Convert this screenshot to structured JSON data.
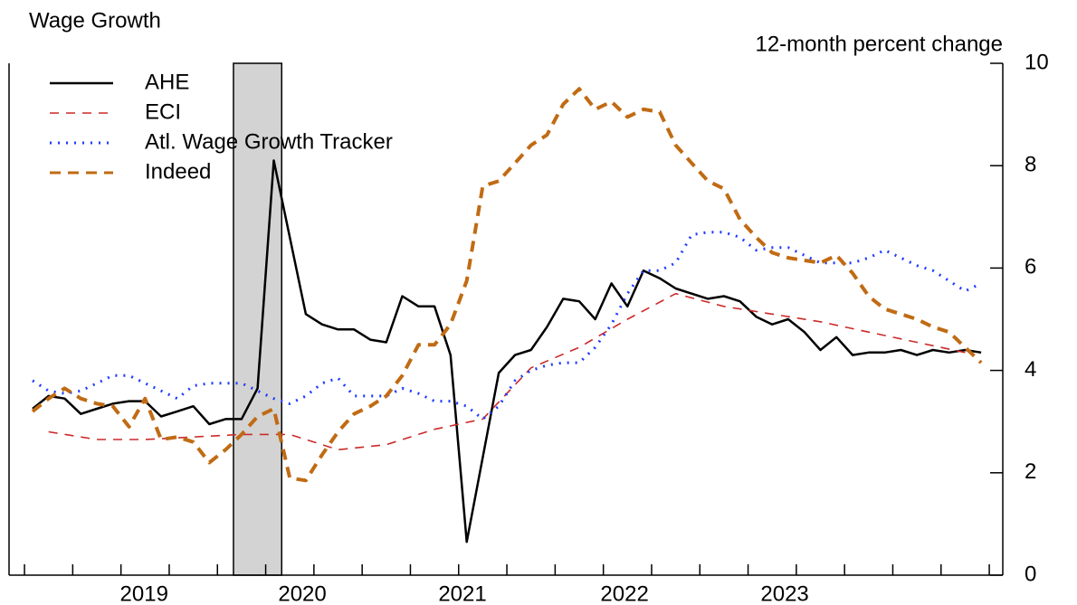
{
  "chart_data": {
    "type": "line",
    "title": "Wage Growth",
    "y_axis_label": "12-month percent change",
    "xlim": [
      2018.92,
      2024.07
    ],
    "ylim": [
      0,
      10
    ],
    "yticks": [
      0,
      2,
      4,
      6,
      8,
      10
    ],
    "xticks": [
      {
        "value": 2019.62,
        "label": "2019"
      },
      {
        "value": 2020.44,
        "label": "2020"
      },
      {
        "value": 2021.27,
        "label": "2021"
      },
      {
        "value": 2022.11,
        "label": "2022"
      },
      {
        "value": 2022.94,
        "label": "2023"
      }
    ],
    "xminor_ticks": [
      2019,
      2019.25,
      2019.5,
      2019.75,
      2020,
      2020.25,
      2020.5,
      2020.75,
      2021,
      2021.25,
      2021.5,
      2021.75,
      2022,
      2022.25,
      2022.5,
      2022.75,
      2023,
      2023.25,
      2023.5,
      2023.75,
      2024
    ],
    "shaded_spans": [
      [
        2020.083,
        2020.333
      ]
    ],
    "shade_color": "#d3d3d3",
    "legend": "upper left",
    "x": [
      2019.042,
      2019.125,
      2019.208,
      2019.292,
      2019.375,
      2019.458,
      2019.542,
      2019.625,
      2019.708,
      2019.792,
      2019.875,
      2019.958,
      2020.042,
      2020.125,
      2020.208,
      2020.292,
      2020.375,
      2020.458,
      2020.542,
      2020.625,
      2020.708,
      2020.792,
      2020.875,
      2020.958,
      2021.042,
      2021.125,
      2021.208,
      2021.292,
      2021.375,
      2021.458,
      2021.542,
      2021.625,
      2021.708,
      2021.792,
      2021.875,
      2021.958,
      2022.042,
      2022.125,
      2022.208,
      2022.292,
      2022.375,
      2022.458,
      2022.542,
      2022.625,
      2022.708,
      2022.792,
      2022.875,
      2022.958,
      2023.042,
      2023.125,
      2023.208,
      2023.292,
      2023.375,
      2023.458,
      2023.542,
      2023.625,
      2023.708,
      2023.792,
      2023.875,
      2023.958
    ],
    "series": [
      {
        "name": "AHE",
        "color": "#000000",
        "dash": "none",
        "width": 2.5,
        "values": [
          3.25,
          3.5,
          3.45,
          3.15,
          3.25,
          3.35,
          3.4,
          3.4,
          3.1,
          3.2,
          3.3,
          2.95,
          3.05,
          3.05,
          3.65,
          8.1,
          6.6,
          5.1,
          4.9,
          4.8,
          4.8,
          4.6,
          4.55,
          5.45,
          5.25,
          5.25,
          4.3,
          0.65,
          2.3,
          3.95,
          4.3,
          4.4,
          4.85,
          5.4,
          5.35,
          5.0,
          5.7,
          5.25,
          5.95,
          5.8,
          5.6,
          5.5,
          5.4,
          5.45,
          5.35,
          5.05,
          4.9,
          5.0,
          4.75,
          4.4,
          4.65,
          4.3,
          4.35,
          4.35,
          4.4,
          4.3,
          4.4,
          4.35,
          4.4,
          4.35
        ]
      },
      {
        "name": "ECI",
        "color": "#cc2a2a",
        "dash": "10 8",
        "width": 1.6,
        "x": [
          2019.125,
          2019.375,
          2019.625,
          2019.875,
          2020.125,
          2020.375,
          2020.625,
          2020.875,
          2021.125,
          2021.375,
          2021.625,
          2021.875,
          2022.125,
          2022.375,
          2022.625,
          2022.875,
          2023.125,
          2023.375,
          2023.625,
          2023.875
        ],
        "values": [
          2.8,
          2.65,
          2.65,
          2.7,
          2.75,
          2.75,
          2.45,
          2.55,
          2.85,
          3.05,
          4.05,
          4.45,
          5.0,
          5.5,
          5.25,
          5.1,
          4.95,
          4.75,
          4.55,
          4.35
        ]
      },
      {
        "name": "Atl. Wage Growth Tracker",
        "color": "#1f3cff",
        "dash": "2 7",
        "width": 3,
        "values": [
          3.8,
          3.6,
          3.55,
          3.6,
          3.75,
          3.9,
          3.9,
          3.75,
          3.6,
          3.45,
          3.7,
          3.75,
          3.75,
          3.75,
          3.6,
          3.45,
          3.35,
          3.5,
          3.75,
          3.85,
          3.5,
          3.5,
          3.5,
          3.65,
          3.55,
          3.4,
          3.4,
          3.3,
          3.05,
          3.3,
          3.8,
          4.0,
          4.1,
          4.15,
          4.15,
          4.45,
          4.9,
          5.5,
          5.95,
          5.95,
          6.1,
          6.65,
          6.7,
          6.7,
          6.6,
          6.35,
          6.4,
          6.4,
          6.25,
          6.1,
          6.1,
          6.1,
          6.2,
          6.35,
          6.2,
          6.05,
          5.95,
          5.75,
          5.55,
          5.7
        ]
      },
      {
        "name": "Indeed",
        "color": "#c06b14",
        "dash": "12 8",
        "width": 4,
        "values": [
          3.2,
          3.45,
          3.65,
          3.45,
          3.35,
          3.3,
          2.9,
          3.45,
          2.65,
          2.7,
          2.6,
          2.2,
          2.45,
          2.75,
          3.1,
          3.25,
          1.9,
          1.85,
          2.35,
          2.8,
          3.15,
          3.3,
          3.5,
          3.9,
          4.5,
          4.5,
          4.9,
          5.75,
          7.6,
          7.7,
          8.05,
          8.4,
          8.6,
          9.2,
          9.5,
          9.1,
          9.25,
          8.95,
          9.1,
          9.05,
          8.4,
          8.05,
          7.7,
          7.55,
          6.95,
          6.6,
          6.3,
          6.2,
          6.15,
          6.1,
          6.25,
          5.9,
          5.45,
          5.2,
          5.1,
          5.0,
          4.85,
          4.75,
          4.45,
          4.15
        ]
      }
    ]
  }
}
